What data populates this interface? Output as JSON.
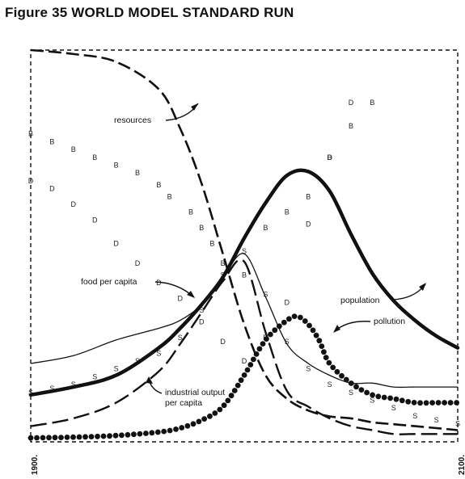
{
  "title": "Figure 35 WORLD MODEL STANDARD RUN",
  "chart_data": {
    "type": "line",
    "title": "Figure 35 WORLD MODEL STANDARD RUN",
    "x_range": [
      1900,
      2100
    ],
    "y_range": [
      0,
      1
    ],
    "x_tick_labels": [
      "1900.",
      "2100."
    ],
    "grid": false,
    "legend": "labels annotated on curves",
    "annotations": [
      {
        "text": "resources",
        "series": "resources"
      },
      {
        "text": "food per capita",
        "series": "food per capita"
      },
      {
        "text": "industrial output",
        "series": "industrial output per capita"
      },
      {
        "text": "per capita",
        "series": "industrial output per capita"
      },
      {
        "text": "population",
        "series": "population"
      },
      {
        "text": "pollution",
        "series": "pollution"
      }
    ],
    "series": [
      {
        "name": "resources",
        "style": "long-dash with solid dots",
        "x": [
          1900,
          1920,
          1940,
          1960,
          1970,
          1980,
          1990,
          2000,
          2010,
          2020,
          2030,
          2040,
          2050,
          2060,
          2070,
          2080,
          2090,
          2100
        ],
        "y": [
          1.0,
          0.99,
          0.97,
          0.9,
          0.8,
          0.66,
          0.48,
          0.3,
          0.17,
          0.11,
          0.08,
          0.065,
          0.06,
          0.05,
          0.045,
          0.04,
          0.035,
          0.03
        ]
      },
      {
        "name": "food per capita",
        "style": "thin line with F marks",
        "x": [
          1900,
          1920,
          1940,
          1960,
          1970,
          1980,
          1990,
          2000,
          2010,
          2020,
          2030,
          2040,
          2050,
          2060,
          2070,
          2080,
          2090,
          2100
        ],
        "y": [
          0.2,
          0.22,
          0.26,
          0.29,
          0.31,
          0.35,
          0.42,
          0.48,
          0.37,
          0.25,
          0.2,
          0.17,
          0.15,
          0.15,
          0.14,
          0.14,
          0.14,
          0.14
        ]
      },
      {
        "name": "industrial output per capita",
        "style": "long-dash",
        "x": [
          1900,
          1920,
          1940,
          1960,
          1970,
          1980,
          1990,
          2000,
          2010,
          2020,
          2030,
          2040,
          2050,
          2060,
          2070,
          2080,
          2090,
          2100
        ],
        "y": [
          0.04,
          0.06,
          0.1,
          0.18,
          0.25,
          0.33,
          0.41,
          0.46,
          0.28,
          0.13,
          0.09,
          0.06,
          0.04,
          0.03,
          0.02,
          0.02,
          0.02,
          0.02
        ]
      },
      {
        "name": "population",
        "style": "thick solid line",
        "x": [
          1900,
          1920,
          1940,
          1960,
          1970,
          1980,
          1990,
          2000,
          2010,
          2020,
          2030,
          2040,
          2050,
          2060,
          2070,
          2080,
          2090,
          2100
        ],
        "y": [
          0.12,
          0.14,
          0.17,
          0.24,
          0.29,
          0.35,
          0.42,
          0.52,
          0.61,
          0.68,
          0.69,
          0.64,
          0.53,
          0.43,
          0.36,
          0.31,
          0.27,
          0.24
        ]
      },
      {
        "name": "pollution",
        "style": "solid dots",
        "x": [
          1900,
          1920,
          1940,
          1960,
          1970,
          1980,
          1990,
          2000,
          2010,
          2020,
          2025,
          2030,
          2035,
          2040,
          2050,
          2060,
          2070,
          2080,
          2090,
          2100
        ],
        "y": [
          0.01,
          0.012,
          0.016,
          0.025,
          0.035,
          0.055,
          0.09,
          0.17,
          0.26,
          0.31,
          0.32,
          0.3,
          0.26,
          0.2,
          0.15,
          0.12,
          0.11,
          0.1,
          0.1,
          0.1
        ]
      },
      {
        "name": "B",
        "style": "scattered letter B",
        "x": [
          1900,
          1910,
          1920,
          1930,
          1940,
          1950,
          1960,
          1965,
          1975,
          1980,
          1985,
          1990,
          2000,
          2010,
          2020,
          2030,
          2040,
          2050,
          2060
        ],
        "y": [
          0.78,
          0.76,
          0.74,
          0.72,
          0.7,
          0.68,
          0.65,
          0.62,
          0.58,
          0.54,
          0.5,
          0.45,
          0.42,
          0.54,
          0.58,
          0.62,
          0.72,
          0.8,
          0.86
        ]
      },
      {
        "name": "D",
        "style": "scattered letter D",
        "x": [
          1900,
          1910,
          1920,
          1930,
          1940,
          1950,
          1960,
          1970,
          1980,
          1990,
          2000,
          2010,
          2020,
          2030,
          2040,
          2050
        ],
        "y": [
          0.66,
          0.64,
          0.6,
          0.56,
          0.5,
          0.45,
          0.4,
          0.36,
          0.3,
          0.25,
          0.2,
          0.26,
          0.35,
          0.55,
          0.72,
          0.86
        ]
      },
      {
        "name": "S",
        "style": "scattered letter S",
        "x": [
          1900,
          1910,
          1920,
          1930,
          1940,
          1950,
          1960,
          1970,
          1980,
          1990,
          2000,
          2010,
          2020,
          2030,
          2040,
          2050,
          2060,
          2070,
          2080,
          2090,
          2100
        ],
        "y": [
          0.12,
          0.13,
          0.14,
          0.16,
          0.18,
          0.2,
          0.22,
          0.26,
          0.33,
          0.42,
          0.48,
          0.37,
          0.25,
          0.18,
          0.14,
          0.12,
          0.1,
          0.08,
          0.06,
          0.05,
          0.04
        ]
      }
    ]
  }
}
